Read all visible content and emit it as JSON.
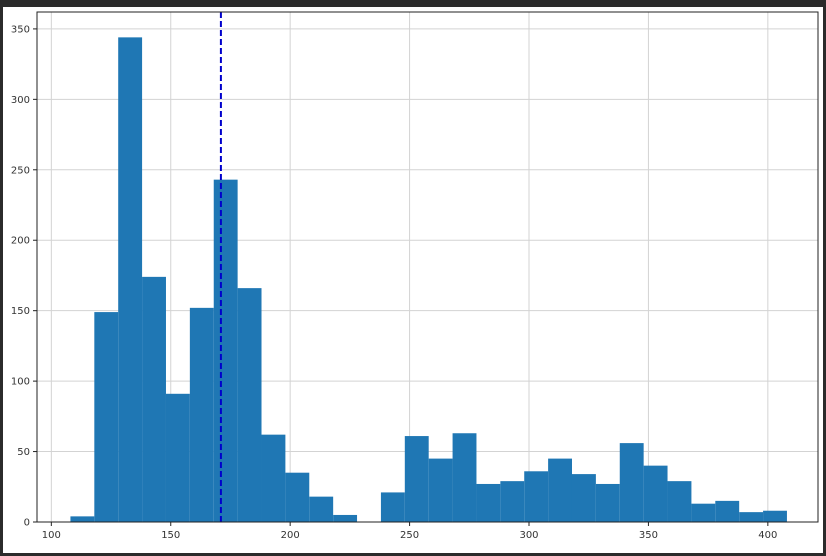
{
  "chart_data": {
    "type": "bar",
    "title": "",
    "xlabel": "",
    "ylabel": "",
    "xlim": [
      94,
      421
    ],
    "ylim": [
      0,
      362
    ],
    "xticks": [
      100,
      150,
      200,
      250,
      300,
      350,
      400
    ],
    "yticks": [
      0,
      50,
      100,
      150,
      200,
      250,
      300,
      350
    ],
    "grid": true,
    "bar_color": "#1f77b4",
    "vline": {
      "x": 171,
      "color": "#0000cc",
      "style": "dashed"
    },
    "bins": [
      {
        "x0": 108,
        "x1": 118,
        "value": 4
      },
      {
        "x0": 118,
        "x1": 128,
        "value": 149
      },
      {
        "x0": 128,
        "x1": 138,
        "value": 344
      },
      {
        "x0": 138,
        "x1": 148,
        "value": 174
      },
      {
        "x0": 148,
        "x1": 158,
        "value": 91
      },
      {
        "x0": 158,
        "x1": 168,
        "value": 152
      },
      {
        "x0": 168,
        "x1": 178,
        "value": 243
      },
      {
        "x0": 178,
        "x1": 188,
        "value": 166
      },
      {
        "x0": 188,
        "x1": 198,
        "value": 62
      },
      {
        "x0": 198,
        "x1": 208,
        "value": 35
      },
      {
        "x0": 208,
        "x1": 218,
        "value": 18
      },
      {
        "x0": 218,
        "x1": 228,
        "value": 5
      },
      {
        "x0": 228,
        "x1": 238,
        "value": 0
      },
      {
        "x0": 238,
        "x1": 248,
        "value": 21
      },
      {
        "x0": 248,
        "x1": 258,
        "value": 61
      },
      {
        "x0": 258,
        "x1": 268,
        "value": 45
      },
      {
        "x0": 268,
        "x1": 278,
        "value": 63
      },
      {
        "x0": 278,
        "x1": 288,
        "value": 27
      },
      {
        "x0": 288,
        "x1": 298,
        "value": 29
      },
      {
        "x0": 298,
        "x1": 308,
        "value": 36
      },
      {
        "x0": 308,
        "x1": 318,
        "value": 45
      },
      {
        "x0": 318,
        "x1": 328,
        "value": 34
      },
      {
        "x0": 328,
        "x1": 338,
        "value": 27
      },
      {
        "x0": 338,
        "x1": 348,
        "value": 56
      },
      {
        "x0": 348,
        "x1": 358,
        "value": 40
      },
      {
        "x0": 358,
        "x1": 368,
        "value": 29
      },
      {
        "x0": 368,
        "x1": 378,
        "value": 13
      },
      {
        "x0": 378,
        "x1": 388,
        "value": 15
      },
      {
        "x0": 388,
        "x1": 398,
        "value": 7
      },
      {
        "x0": 398,
        "x1": 408,
        "value": 8
      }
    ]
  }
}
